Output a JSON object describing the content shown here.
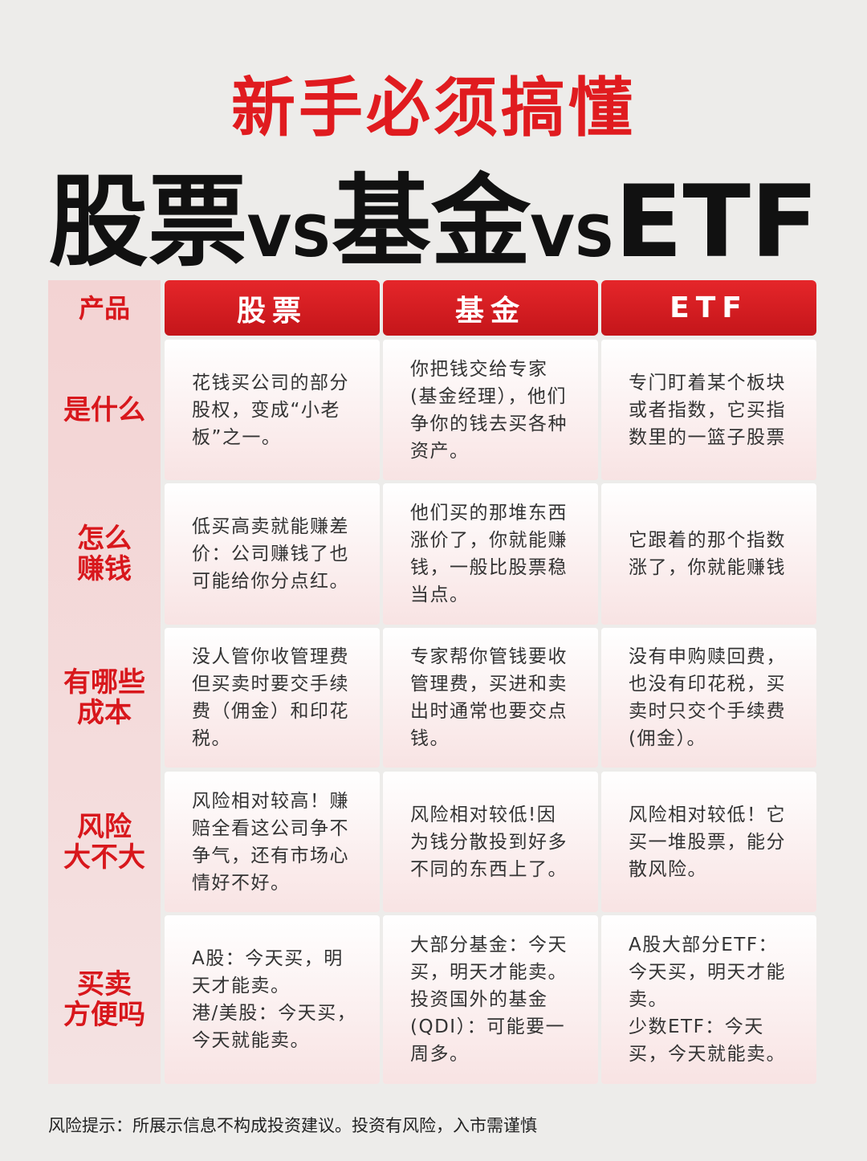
{
  "header": {
    "title": "新手必须搞懂",
    "subtitle_parts": [
      "股票",
      "VS",
      "基金",
      "VS",
      "ETF"
    ]
  },
  "table": {
    "corner": "产品",
    "columns": [
      "股票",
      "基金",
      "ETF"
    ],
    "rows": [
      {
        "label": [
          "是什么"
        ],
        "cells": [
          "花钱买公司的部分股权，变成“小老板”之一。",
          "你把钱交给专家(基金经理），他们争你的钱去买各种资产。",
          "专门盯着某个板块或者指数，它买指数里的一篮子股票"
        ]
      },
      {
        "label": [
          "怎么",
          "赚钱"
        ],
        "cells": [
          "低买高卖就能赚差价：公司赚钱了也可能给你分点红。",
          "他们买的那堆东西涨价了，你就能赚钱，一般比股票稳当点。",
          "它跟着的那个指数涨了，你就能赚钱"
        ]
      },
      {
        "label": [
          "有哪些",
          "成本"
        ],
        "cells": [
          "没人管你收管理费但买卖时要交手续费（佣金）和印花税。",
          "专家帮你管钱要收管理费，买进和卖出时通常也要交点钱。",
          "没有申购赎回费，也没有印花税，买卖时只交个手续费(佣金）。"
        ]
      },
      {
        "label": [
          "风险",
          "大不大"
        ],
        "cells": [
          "风险相对较高！赚赔全看这公司争不争气，还有市场心情好不好。",
          "风险相对较低!因为钱分散投到好多不同的东西上了。",
          "风险相对较低！它买一堆股票，能分散风险。"
        ]
      },
      {
        "label": [
          "买卖",
          "方便吗"
        ],
        "cells": [
          [
            "A股：今天买，明天才能卖。",
            "港/美股：今天买，今天就能卖。"
          ],
          [
            "大部分基金：今天买，明天才能卖。",
            "投资国外的基金(QDI）：可能要一周多。"
          ],
          [
            "A股大部分ETF：今天买，明天才能卖。",
            "少数ETF：今天买，今天就能卖。"
          ]
        ]
      }
    ]
  },
  "footer": "风险提示：所展示信息不构成投资建议。投资有风险，入市需谨慎"
}
